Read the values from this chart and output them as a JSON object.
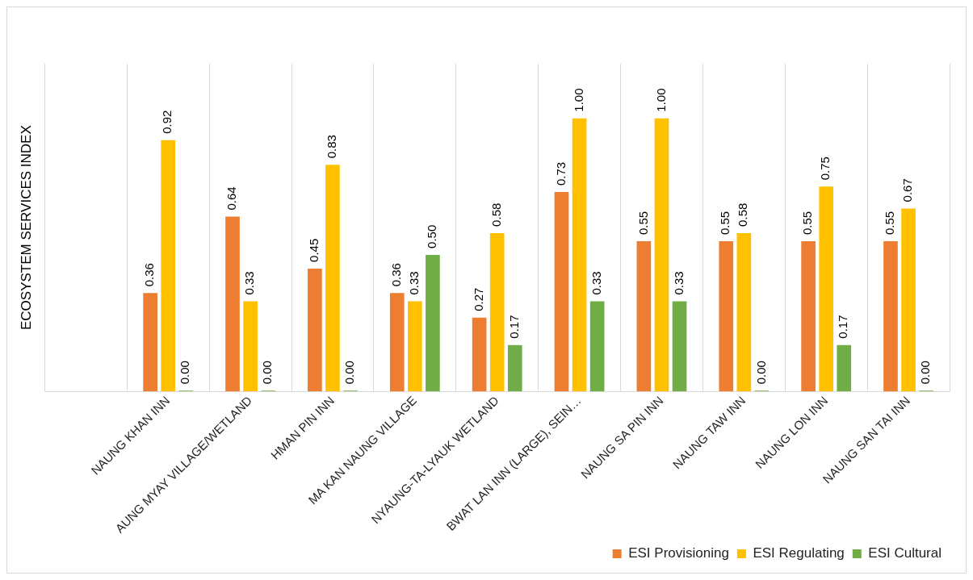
{
  "chart_data": {
    "type": "bar",
    "ylabel": "ECOSYSTEM SERVICES INDEX",
    "categories": [
      null,
      "NAUNG KHAN INN",
      "AUNG MYAY VILLAGE/WETLAND",
      "HMAN PIN INN",
      "MA KAN NAUNG VILLAGE",
      "NYAUNG-TA-LYAUK WETLAND",
      "BWAT LAN INN (LARGE), SEIN…",
      "NAUNG SA PIN INN",
      "NAUNG TAW INN",
      "NAUNG LON INN",
      "NAUNG SAN TAI INN"
    ],
    "series": [
      {
        "name": "ESI Provisioning",
        "color": "#ed7d31",
        "values": [
          null,
          0.36,
          0.64,
          0.45,
          0.36,
          0.27,
          0.73,
          0.55,
          0.55,
          0.55,
          0.55
        ],
        "value_labels": [
          null,
          "0.36",
          "0.64",
          "0.45",
          "0.36",
          "0.27",
          "0.73",
          "0.55",
          "0.55",
          "0.55",
          "0.55"
        ]
      },
      {
        "name": "ESI Regulating",
        "color": "#ffc000",
        "values": [
          null,
          0.92,
          0.33,
          0.83,
          0.33,
          0.58,
          1.0,
          1.0,
          0.58,
          0.75,
          0.67
        ],
        "value_labels": [
          null,
          "0.92",
          "0.33",
          "0.83",
          "0.33",
          "0.58",
          "1.00",
          "1.00",
          "0.58",
          "0.75",
          "0.67"
        ]
      },
      {
        "name": "ESI Cultural",
        "color": "#70ad47",
        "values": [
          null,
          0.0,
          0.0,
          0.0,
          0.5,
          0.17,
          0.33,
          0.33,
          0.0,
          0.17,
          0.0
        ],
        "value_labels": [
          null,
          "0.00",
          "0.00",
          "0.00",
          "0.50",
          "0.17",
          "0.33",
          "0.33",
          "0.00",
          "0.17",
          "0.00"
        ]
      }
    ],
    "ylim": [
      0,
      1.2
    ],
    "tick_labels": "x",
    "grid": "x",
    "legend": "bottom right"
  }
}
